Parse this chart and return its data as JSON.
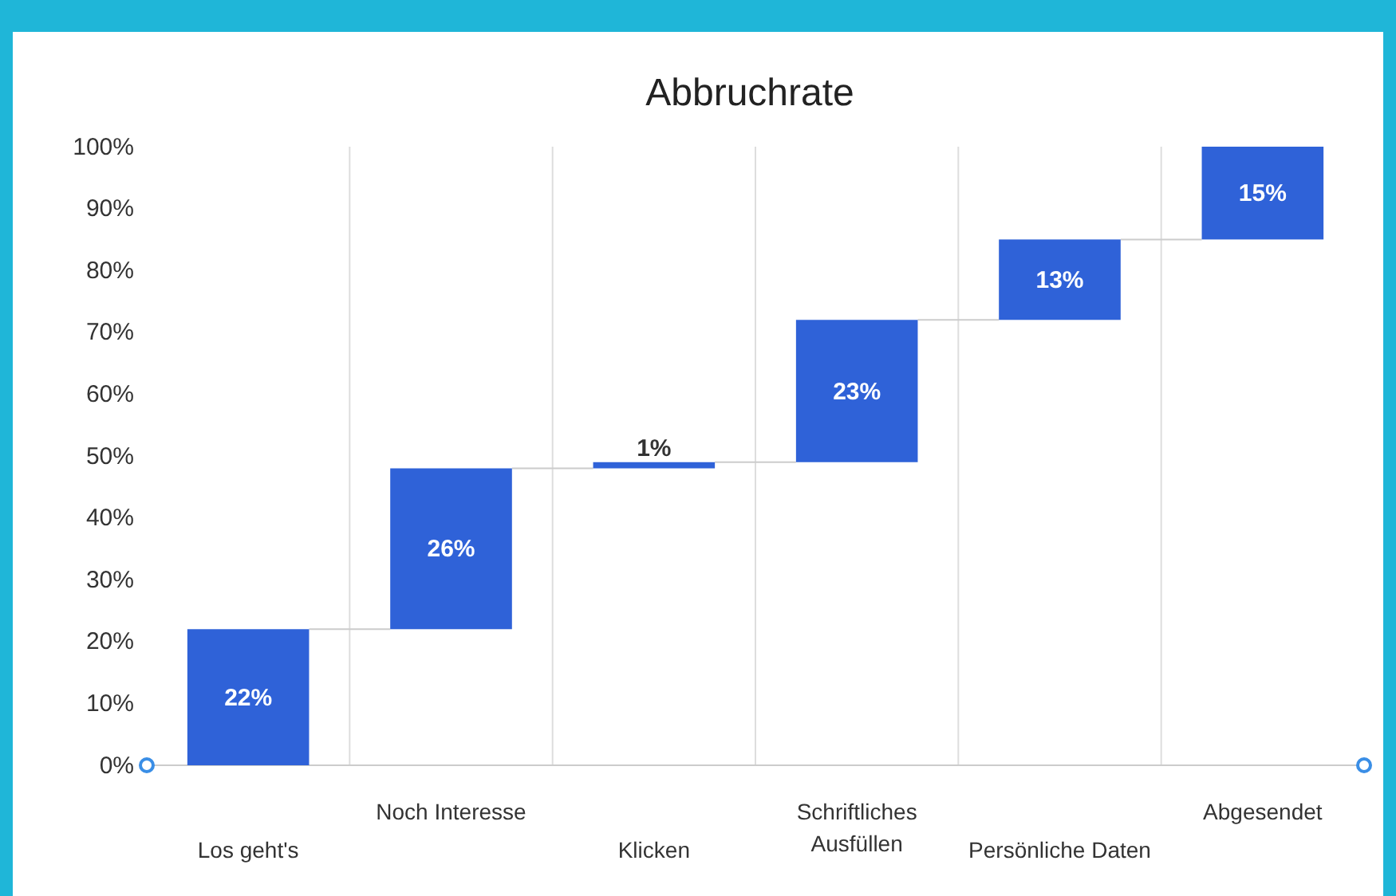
{
  "chart_data": {
    "type": "bar",
    "title": "Abbruchrate",
    "categories": [
      "Los geht's",
      "Noch Interesse",
      "Klicken",
      "Schriftliches Ausfüllen",
      "Persönliche Daten",
      "Abgesendet"
    ],
    "values": [
      22,
      26,
      1,
      23,
      13,
      15
    ],
    "base": [
      0,
      22,
      48,
      49,
      72,
      85
    ],
    "value_labels": [
      "22%",
      "26%",
      "1%",
      "23%",
      "13%",
      "15%"
    ],
    "color": "#2f62d8",
    "ylim": [
      0,
      100
    ],
    "yticks": [
      {
        "value": 0,
        "label": "0%"
      },
      {
        "value": 10,
        "label": "10%"
      },
      {
        "value": 20,
        "label": "20%"
      },
      {
        "value": 30,
        "label": "30%"
      },
      {
        "value": 40,
        "label": "40%"
      },
      {
        "value": 50,
        "label": "50%"
      },
      {
        "value": 60,
        "label": "60%"
      },
      {
        "value": 70,
        "label": "70%"
      },
      {
        "value": 80,
        "label": "80%"
      },
      {
        "value": 90,
        "label": "90%"
      },
      {
        "value": 100,
        "label": "100%"
      }
    ],
    "grid": "x"
  }
}
